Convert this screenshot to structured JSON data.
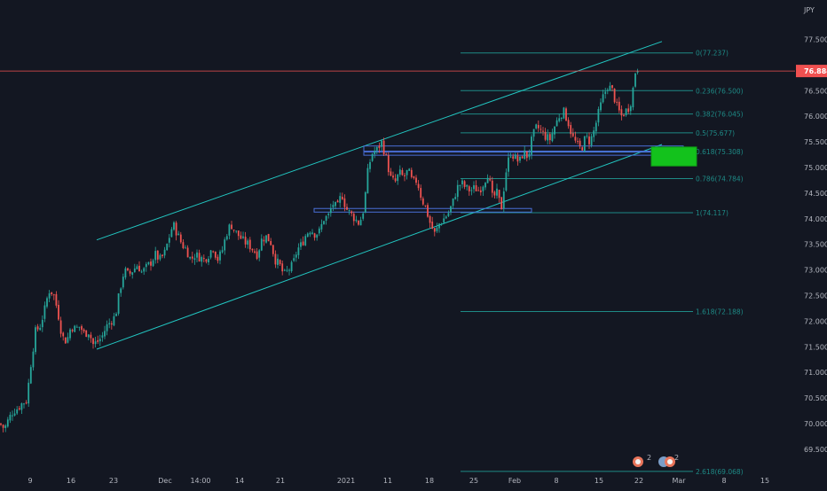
{
  "currency": "JPY",
  "price_axis_ticks": [
    69.5,
    70.0,
    70.5,
    71.0,
    71.5,
    72.0,
    72.5,
    73.0,
    73.5,
    74.0,
    74.5,
    75.0,
    75.5,
    76.0,
    76.5,
    77.0,
    77.5
  ],
  "time_axis_labels": [
    "9",
    "16",
    "23",
    "Dec",
    "14:00",
    "14",
    "21",
    "2021",
    "11",
    "18",
    "25",
    "Feb",
    "8",
    "15",
    "22",
    "Mar",
    "8",
    "15"
  ],
  "last_price": "76.884",
  "colors": {
    "background": "#131722",
    "up": "#26a69a",
    "down": "#ef5350",
    "channel": "#22c7c2",
    "fib": "#1e8a86",
    "zone": "#13c21c",
    "price_label": "#f05050"
  },
  "chart_data": {
    "type": "candlestick",
    "ylim": [
      69.2,
      77.75
    ],
    "grid": false,
    "last_price": 76.884,
    "fib_levels": [
      {
        "ratio": "0",
        "price": 77.237,
        "label": "0(77.237)"
      },
      {
        "ratio": "0.236",
        "price": 76.5,
        "label": "0.236(76.500)"
      },
      {
        "ratio": "0.382",
        "price": 76.045,
        "label": "0.382(76.045)"
      },
      {
        "ratio": "0.5",
        "price": 75.677,
        "label": "0.5(75.677)"
      },
      {
        "ratio": "0.618",
        "price": 75.308,
        "label": "0.618(75.308)"
      },
      {
        "ratio": "0.786",
        "price": 74.784,
        "label": "0.786(74.784)"
      },
      {
        "ratio": "1",
        "price": 74.117,
        "label": "1(74.117)"
      },
      {
        "ratio": "1.618",
        "price": 72.188,
        "label": "1.618(72.188)"
      },
      {
        "ratio": "2.618",
        "price": 69.068,
        "label": "2.618(69.068)"
      }
    ],
    "price_path": [
      {
        "t": 0,
        "p": 70.0
      },
      {
        "t": 5,
        "p": 69.9
      },
      {
        "t": 10,
        "p": 70.1
      },
      {
        "t": 15,
        "p": 70.25
      },
      {
        "t": 20,
        "p": 70.3
      },
      {
        "t": 25,
        "p": 70.4
      },
      {
        "t": 30,
        "p": 70.45
      },
      {
        "t": 35,
        "p": 71.2
      },
      {
        "t": 40,
        "p": 71.8
      },
      {
        "t": 45,
        "p": 71.9
      },
      {
        "t": 50,
        "p": 72.2
      },
      {
        "t": 55,
        "p": 72.6
      },
      {
        "t": 60,
        "p": 72.55
      },
      {
        "t": 65,
        "p": 72.2
      },
      {
        "t": 70,
        "p": 71.7
      },
      {
        "t": 75,
        "p": 71.6
      },
      {
        "t": 80,
        "p": 71.9
      },
      {
        "t": 85,
        "p": 71.85
      },
      {
        "t": 90,
        "p": 71.9
      },
      {
        "t": 95,
        "p": 71.75
      },
      {
        "t": 100,
        "p": 71.8
      },
      {
        "t": 105,
        "p": 71.55
      },
      {
        "t": 110,
        "p": 71.6
      },
      {
        "t": 115,
        "p": 71.7
      },
      {
        "t": 120,
        "p": 71.9
      },
      {
        "t": 125,
        "p": 72.0
      },
      {
        "t": 130,
        "p": 72.1
      },
      {
        "t": 135,
        "p": 72.6
      },
      {
        "t": 140,
        "p": 73.0
      },
      {
        "t": 145,
        "p": 72.9
      },
      {
        "t": 150,
        "p": 73.0
      },
      {
        "t": 155,
        "p": 73.1
      },
      {
        "t": 160,
        "p": 72.95
      },
      {
        "t": 165,
        "p": 73.05
      },
      {
        "t": 170,
        "p": 73.15
      },
      {
        "t": 175,
        "p": 73.3
      },
      {
        "t": 180,
        "p": 73.2
      },
      {
        "t": 185,
        "p": 73.3
      },
      {
        "t": 190,
        "p": 73.6
      },
      {
        "t": 195,
        "p": 73.9
      },
      {
        "t": 200,
        "p": 73.7
      },
      {
        "t": 205,
        "p": 73.5
      },
      {
        "t": 210,
        "p": 73.4
      },
      {
        "t": 215,
        "p": 73.2
      },
      {
        "t": 220,
        "p": 73.3
      },
      {
        "t": 225,
        "p": 73.25
      },
      {
        "t": 230,
        "p": 73.2
      },
      {
        "t": 235,
        "p": 73.3
      },
      {
        "t": 240,
        "p": 73.45
      },
      {
        "t": 245,
        "p": 73.2
      },
      {
        "t": 250,
        "p": 73.35
      },
      {
        "t": 255,
        "p": 73.7
      },
      {
        "t": 260,
        "p": 73.9
      },
      {
        "t": 265,
        "p": 73.75
      },
      {
        "t": 270,
        "p": 73.65
      },
      {
        "t": 275,
        "p": 73.55
      },
      {
        "t": 280,
        "p": 73.5
      },
      {
        "t": 285,
        "p": 73.4
      },
      {
        "t": 290,
        "p": 73.3
      },
      {
        "t": 295,
        "p": 73.6
      },
      {
        "t": 300,
        "p": 73.65
      },
      {
        "t": 305,
        "p": 73.55
      },
      {
        "t": 310,
        "p": 73.2
      },
      {
        "t": 315,
        "p": 73.1
      },
      {
        "t": 320,
        "p": 72.9
      },
      {
        "t": 325,
        "p": 73.0
      },
      {
        "t": 330,
        "p": 73.1
      },
      {
        "t": 335,
        "p": 73.4
      },
      {
        "t": 340,
        "p": 73.5
      },
      {
        "t": 345,
        "p": 73.7
      },
      {
        "t": 350,
        "p": 73.8
      },
      {
        "t": 355,
        "p": 73.7
      },
      {
        "t": 360,
        "p": 73.75
      },
      {
        "t": 365,
        "p": 74.0
      },
      {
        "t": 370,
        "p": 74.05
      },
      {
        "t": 375,
        "p": 74.3
      },
      {
        "t": 380,
        "p": 74.2
      },
      {
        "t": 385,
        "p": 74.5
      },
      {
        "t": 390,
        "p": 74.2
      },
      {
        "t": 395,
        "p": 74.1
      },
      {
        "t": 400,
        "p": 74.0
      },
      {
        "t": 405,
        "p": 73.9
      },
      {
        "t": 410,
        "p": 74.2
      },
      {
        "t": 415,
        "p": 75.0
      },
      {
        "t": 420,
        "p": 75.3
      },
      {
        "t": 425,
        "p": 75.35
      },
      {
        "t": 430,
        "p": 75.5
      },
      {
        "t": 435,
        "p": 75.2
      },
      {
        "t": 440,
        "p": 74.8
      },
      {
        "t": 445,
        "p": 74.7
      },
      {
        "t": 450,
        "p": 74.9
      },
      {
        "t": 455,
        "p": 74.8
      },
      {
        "t": 460,
        "p": 74.95
      },
      {
        "t": 465,
        "p": 74.7
      },
      {
        "t": 470,
        "p": 74.75
      },
      {
        "t": 475,
        "p": 74.4
      },
      {
        "t": 480,
        "p": 74.2
      },
      {
        "t": 485,
        "p": 73.9
      },
      {
        "t": 490,
        "p": 73.7
      },
      {
        "t": 495,
        "p": 73.9
      },
      {
        "t": 500,
        "p": 74.0
      },
      {
        "t": 505,
        "p": 74.1
      },
      {
        "t": 510,
        "p": 74.3
      },
      {
        "t": 515,
        "p": 74.6
      },
      {
        "t": 520,
        "p": 74.7
      },
      {
        "t": 525,
        "p": 74.6
      },
      {
        "t": 530,
        "p": 74.55
      },
      {
        "t": 535,
        "p": 74.6
      },
      {
        "t": 540,
        "p": 74.55
      },
      {
        "t": 545,
        "p": 74.7
      },
      {
        "t": 550,
        "p": 74.9
      },
      {
        "t": 555,
        "p": 74.4
      },
      {
        "t": 560,
        "p": 74.5
      },
      {
        "t": 565,
        "p": 74.2
      },
      {
        "t": 570,
        "p": 74.9
      },
      {
        "t": 575,
        "p": 75.3
      },
      {
        "t": 580,
        "p": 75.2
      },
      {
        "t": 585,
        "p": 75.1
      },
      {
        "t": 590,
        "p": 75.3
      },
      {
        "t": 595,
        "p": 75.2
      },
      {
        "t": 600,
        "p": 75.6
      },
      {
        "t": 605,
        "p": 75.8
      },
      {
        "t": 610,
        "p": 75.7
      },
      {
        "t": 615,
        "p": 75.6
      },
      {
        "t": 620,
        "p": 75.55
      },
      {
        "t": 625,
        "p": 75.8
      },
      {
        "t": 630,
        "p": 76.0
      },
      {
        "t": 635,
        "p": 76.1
      },
      {
        "t": 640,
        "p": 75.9
      },
      {
        "t": 645,
        "p": 75.6
      },
      {
        "t": 650,
        "p": 75.45
      },
      {
        "t": 655,
        "p": 75.35
      },
      {
        "t": 660,
        "p": 75.6
      },
      {
        "t": 665,
        "p": 75.5
      },
      {
        "t": 670,
        "p": 75.75
      },
      {
        "t": 675,
        "p": 76.1
      },
      {
        "t": 680,
        "p": 76.4
      },
      {
        "t": 685,
        "p": 76.6
      },
      {
        "t": 690,
        "p": 76.5
      },
      {
        "t": 695,
        "p": 76.2
      },
      {
        "t": 700,
        "p": 76.0
      },
      {
        "t": 705,
        "p": 76.1
      },
      {
        "t": 710,
        "p": 76.2
      },
      {
        "t": 714,
        "p": 76.6
      },
      {
        "t": 717,
        "p": 77.0
      },
      {
        "t": 720,
        "p": 76.9
      }
    ]
  },
  "toolbar": {
    "badge_1_count": "2",
    "badge_2_count": "2"
  }
}
